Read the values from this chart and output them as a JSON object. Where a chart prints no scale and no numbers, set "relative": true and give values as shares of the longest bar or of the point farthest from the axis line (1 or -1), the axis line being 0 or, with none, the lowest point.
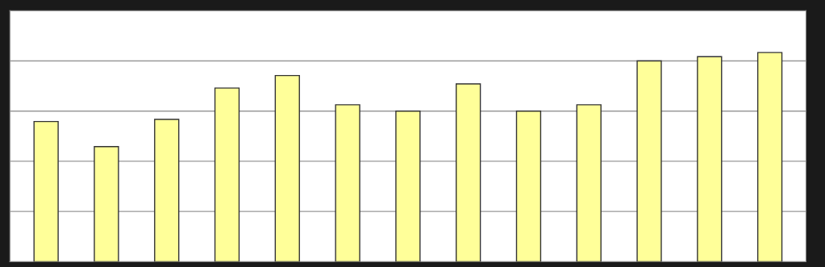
{
  "chart_data": {
    "type": "bar",
    "relative": true,
    "grid": "y",
    "categories": [
      null,
      null,
      null,
      null,
      null,
      null,
      null,
      null,
      null,
      null,
      null,
      null,
      null
    ],
    "values": [
      0.67,
      0.55,
      0.68,
      0.83,
      0.89,
      0.75,
      0.72,
      0.85,
      0.72,
      0.75,
      0.96,
      0.98,
      1
    ],
    "color": "#ffff99"
  }
}
